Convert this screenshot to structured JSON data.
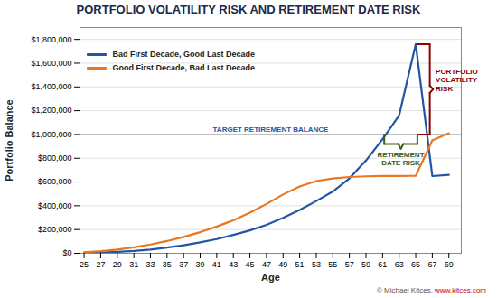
{
  "chart_data": {
    "type": "line",
    "title": "PORTFOLIO VOLATILITY RISK AND RETIREMENT DATE RISK",
    "x_label": "Age",
    "y_label": "Portfolio Balance",
    "x": [
      25,
      27,
      29,
      31,
      33,
      35,
      37,
      39,
      41,
      43,
      45,
      47,
      49,
      51,
      53,
      55,
      57,
      59,
      61,
      63,
      65,
      67,
      69
    ],
    "series": [
      {
        "name": "Bad First Decade, Good Last Decade",
        "color": "#2255a4",
        "values": [
          5000,
          7000,
          12000,
          20000,
          32000,
          48000,
          68000,
          92000,
          120000,
          155000,
          193000,
          240000,
          298000,
          365000,
          440000,
          520000,
          630000,
          780000,
          960000,
          1160000,
          1760000,
          650000,
          660000
        ]
      },
      {
        "name": "Good First Decade, Bad Last Decade",
        "color": "#e87722",
        "values": [
          9000,
          18000,
          32000,
          50000,
          74000,
          103000,
          138000,
          178000,
          225000,
          278000,
          342000,
          415000,
          495000,
          562000,
          608000,
          630000,
          642000,
          648000,
          650000,
          650000,
          652000,
          950000,
          1010000
        ]
      }
    ],
    "xlim": [
      24.5,
      70.5
    ],
    "xticks": [
      25,
      27,
      29,
      31,
      33,
      35,
      37,
      39,
      41,
      43,
      45,
      47,
      49,
      51,
      53,
      55,
      57,
      59,
      61,
      63,
      65,
      67,
      69
    ],
    "ylim": [
      0,
      1900000
    ],
    "yticks": [
      {
        "value": 0,
        "label": "$0"
      },
      {
        "value": 200000,
        "label": "$200,000"
      },
      {
        "value": 400000,
        "label": "$400,000"
      },
      {
        "value": 600000,
        "label": "$600,000"
      },
      {
        "value": 800000,
        "label": "$800,000"
      },
      {
        "value": 1000000,
        "label": "$1,000,000"
      },
      {
        "value": 1200000,
        "label": "$1,200,000"
      },
      {
        "value": 1400000,
        "label": "$1,400,000"
      },
      {
        "value": 1600000,
        "label": "$1,600,000"
      },
      {
        "value": 1800000,
        "label": "$1,800,000"
      }
    ],
    "grid": true,
    "legend": "upper left",
    "hlines": [
      {
        "value": 1000000,
        "color": "#b0b0b0",
        "label": "TARGET RETIREMENT BALANCE",
        "label_color": "#2255a4"
      }
    ],
    "annotations": [
      {
        "text": "PORTFOLIO\nVOLATILITY\nRISK",
        "color": "#8b0000"
      },
      {
        "text": "RETIREMENT\nDATE RISK",
        "color": "#3a5e1a"
      }
    ],
    "credits": [
      {
        "text": "© Michael Kitces, "
      },
      {
        "text": "www.kitces.com",
        "color": "#cc0000"
      }
    ]
  }
}
